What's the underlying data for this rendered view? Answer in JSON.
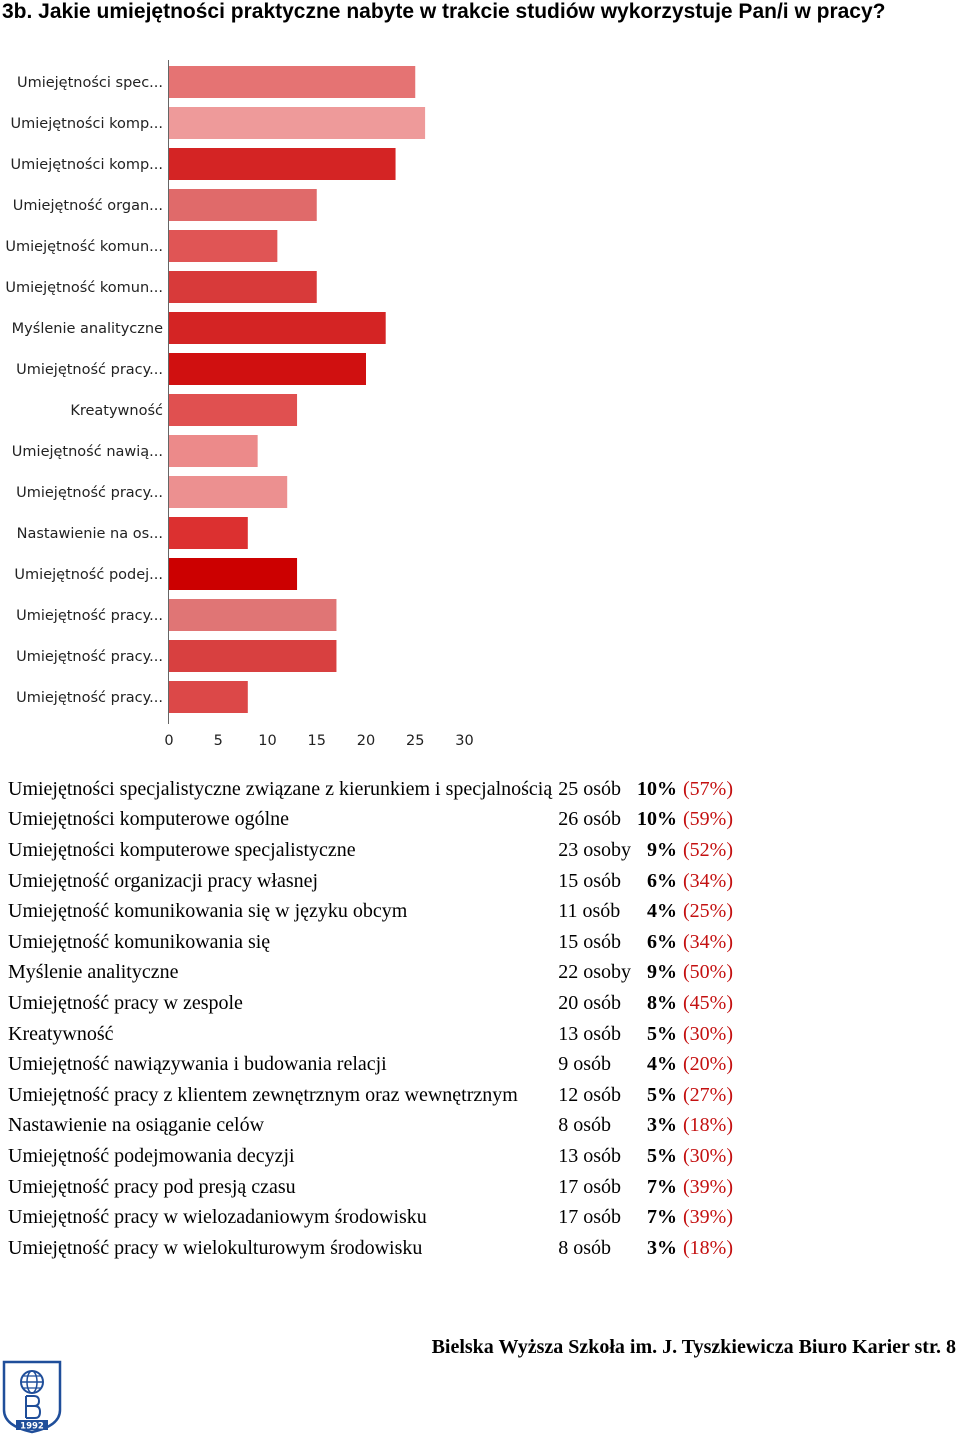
{
  "heading": "3b. Jakie umiejętności praktyczne nabyte w trakcie studiów wykorzystuje Pan/i w pracy?",
  "chart_data": {
    "type": "bar",
    "orientation": "horizontal",
    "categories": [
      "Umiejętności spec...",
      "Umiejętności komp...",
      "Umiejętności komp...",
      "Umiejętność organ...",
      "Umiejętność komun...",
      "Umiejętność komun...",
      "Myślenie analityczne",
      "Umiejętność pracy...",
      "Kreatywność",
      "Umiejętność nawią...",
      "Umiejętność pracy...",
      "Nastawienie na os...",
      "Umiejętność podej...",
      "Umiejętność pracy...",
      "Umiejętność pracy...",
      "Umiejętność pracy..."
    ],
    "values": [
      25,
      26,
      23,
      15,
      11,
      15,
      22,
      20,
      13,
      9,
      12,
      8,
      13,
      17,
      17,
      8
    ],
    "bar_colors": [
      "#e57373",
      "#ee9a9a",
      "#d42424",
      "#e06a6a",
      "#e05555",
      "#d83a3a",
      "#d42424",
      "#d01010",
      "#e05050",
      "#ec8a8a",
      "#ec9090",
      "#dc3030",
      "#cc0000",
      "#e07575",
      "#d84040",
      "#dc4848"
    ],
    "xlim": [
      0,
      30
    ],
    "xticks": [
      0,
      5,
      10,
      15,
      20,
      25,
      30
    ],
    "grid": false,
    "legend": "none"
  },
  "table": {
    "rows": [
      {
        "label": "Umiejętności specjalistyczne związane z kierunkiem i specjalnością",
        "count": "25 osób",
        "pct": "10%",
        "share": "(57%)"
      },
      {
        "label": "Umiejętności komputerowe ogólne",
        "count": "26 osób",
        "pct": "10%",
        "share": "(59%)"
      },
      {
        "label": "Umiejętności komputerowe specjalistyczne",
        "count": "23 osoby",
        "pct": "9%",
        "share": "(52%)"
      },
      {
        "label": "Umiejętność organizacji pracy własnej",
        "count": "15 osób",
        "pct": "6%",
        "share": "(34%)"
      },
      {
        "label": "Umiejętność komunikowania się w języku obcym",
        "count": "11 osób",
        "pct": "4%",
        "share": "(25%)"
      },
      {
        "label": "Umiejętność komunikowania się",
        "count": "15 osób",
        "pct": "6%",
        "share": "(34%)"
      },
      {
        "label": "Myślenie analityczne",
        "count": "22 osoby",
        "pct": "9%",
        "share": "(50%)"
      },
      {
        "label": "Umiejętność pracy w zespole",
        "count": "20 osób",
        "pct": "8%",
        "share": "(45%)"
      },
      {
        "label": "Kreatywność",
        "count": "13 osób",
        "pct": "5%",
        "share": "(30%)"
      },
      {
        "label": "Umiejętność nawiązywania i budowania relacji",
        "count": "9 osób",
        "pct": "4%",
        "share": "(20%)"
      },
      {
        "label": "Umiejętność pracy z klientem zewnętrznym oraz wewnętrznym",
        "count": "12 osób",
        "pct": "5%",
        "share": "(27%)"
      },
      {
        "label": "Nastawienie na osiąganie celów",
        "count": "8 osób",
        "pct": "3%",
        "share": "(18%)"
      },
      {
        "label": "Umiejętność podejmowania decyzji",
        "count": "13 osób",
        "pct": "5%",
        "share": "(30%)"
      },
      {
        "label": "Umiejętność pracy pod presją czasu",
        "count": "17 osób",
        "pct": "7%",
        "share": "(39%)"
      },
      {
        "label": "Umiejętność pracy w wielozadaniowym środowisku",
        "count": "17 osób",
        "pct": "7%",
        "share": "(39%)"
      },
      {
        "label": "Umiejętność pracy w wielokulturowym środowisku",
        "count": "8 osób",
        "pct": "3%",
        "share": "(18%)"
      }
    ]
  },
  "footer": "Bielska Wyższa Szkoła im. J. Tyszkiewicza Biuro Karier str. 8",
  "logo": {
    "year": "1992",
    "primary_color": "#1f4e9a"
  }
}
